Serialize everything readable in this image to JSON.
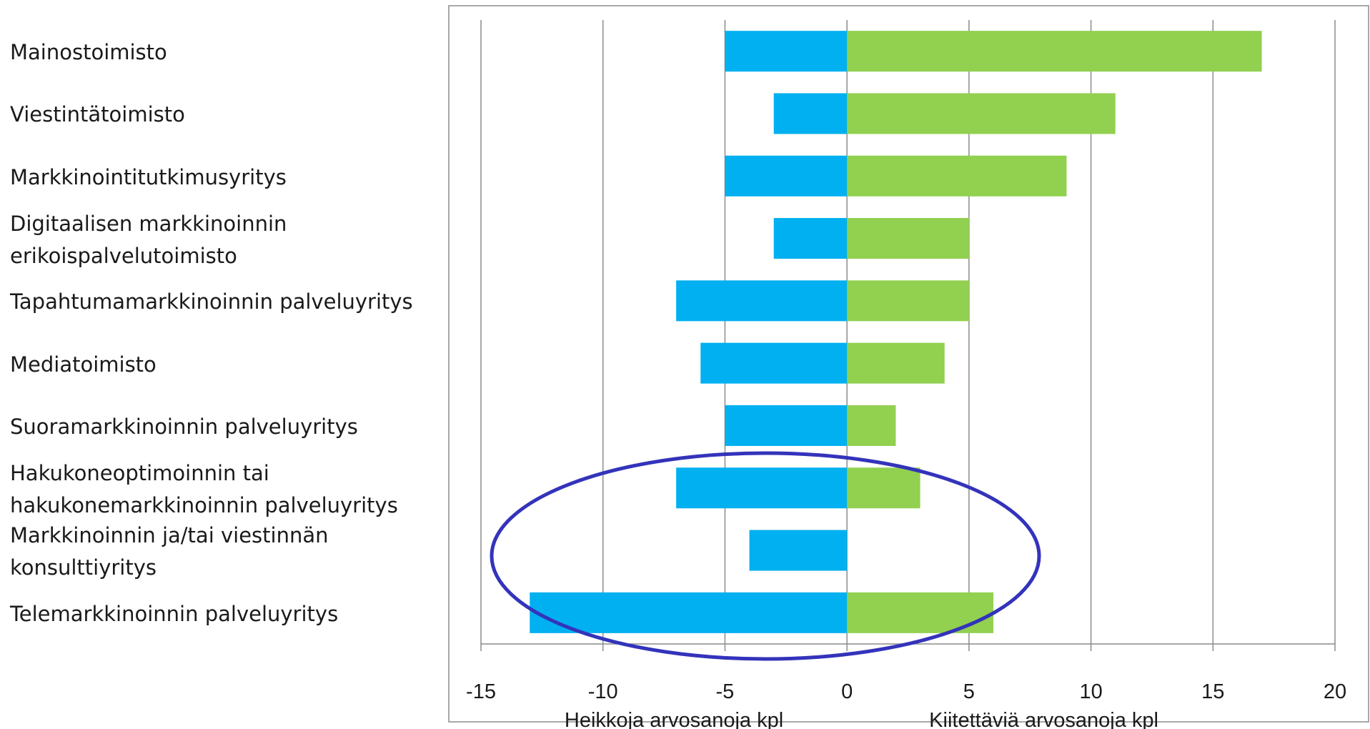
{
  "chart_data": {
    "type": "bar",
    "orientation": "horizontal-diverging",
    "categories": [
      "Mainostoimisto",
      "Viestintätoimisto",
      "Markkinointitutkimusyritys",
      "Digitaalisen markkinoinnin\nerikoispalvelutoimisto",
      "Tapahtumamarkkinoinnin palveluyritys",
      "Mediatoimisto",
      "Suoramarkkinoinnin palveluyritys",
      "Hakukoneoptimoinnin tai\nhakukonemarkkinoinnin palveluyritys",
      "Markkinoinnin ja/tai viestinnän\nkonsulttiyritys",
      "Telemarkkinoinnin palveluyritys"
    ],
    "series": [
      {
        "name": "Heikkoja arvosanoja kpl",
        "color": "#00b0f0",
        "values": [
          -5,
          -3,
          -5,
          -3,
          -7,
          -6,
          -5,
          -7,
          -4,
          -13
        ]
      },
      {
        "name": "Kiitettäviä arvosanoja kpl",
        "color": "#92d050",
        "values": [
          17,
          11,
          9,
          5,
          5,
          4,
          2,
          3,
          0,
          6
        ]
      }
    ],
    "xlim": [
      -15,
      20
    ],
    "xticks": [
      -15,
      -10,
      -5,
      0,
      5,
      10,
      15,
      20
    ],
    "xtick_labels": [
      "-15",
      "-10",
      "-5",
      "0",
      "5",
      "10",
      "15",
      "20"
    ],
    "grid": "vertical",
    "annotation": {
      "shape": "ellipse",
      "color": "#3333bb",
      "highlighted_categories": [
        "Hakukoneoptimoinnin tai\nhakukonemarkkinoinnin palveluyritys",
        "Markkinoinnin ja/tai viestinnän\nkonsulttiyritys",
        "Telemarkkinoinnin palveluyritys"
      ]
    }
  }
}
